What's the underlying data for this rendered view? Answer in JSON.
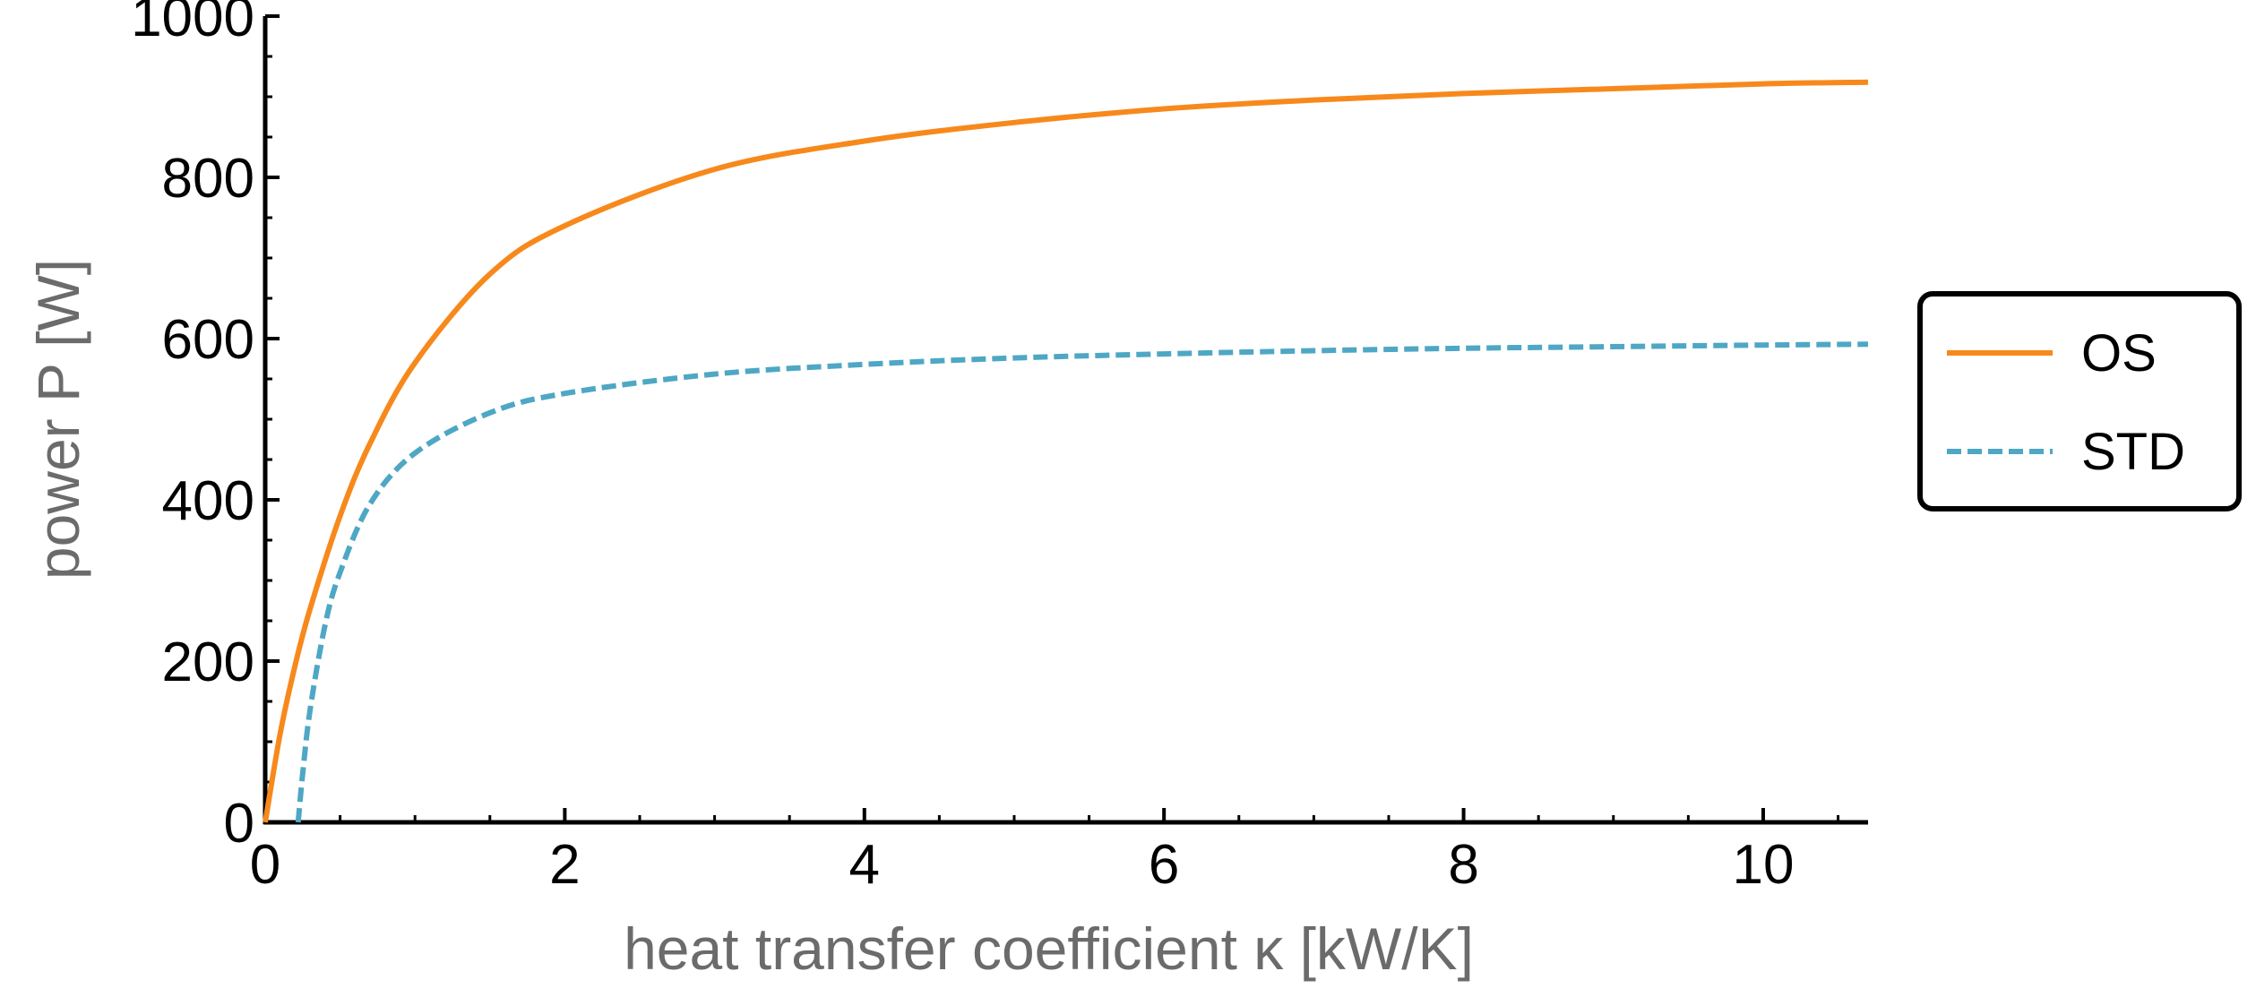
{
  "chart_data": {
    "type": "line",
    "title": "",
    "xlabel": "heat transfer coefficient κ [kW/K]",
    "ylabel": "power P [W]",
    "xlim": [
      0,
      10.7
    ],
    "ylim": [
      0,
      1000
    ],
    "x_ticks": [
      {
        "value": 0,
        "label": "0"
      },
      {
        "value": 2,
        "label": "2"
      },
      {
        "value": 4,
        "label": "4"
      },
      {
        "value": 6,
        "label": "6"
      },
      {
        "value": 8,
        "label": "8"
      },
      {
        "value": 10,
        "label": "10"
      }
    ],
    "y_ticks": [
      {
        "value": 0,
        "label": "0"
      },
      {
        "value": 200,
        "label": "200"
      },
      {
        "value": 400,
        "label": "400"
      },
      {
        "value": 600,
        "label": "600"
      },
      {
        "value": 800,
        "label": "800"
      },
      {
        "value": 1000,
        "label": "1000"
      }
    ],
    "x_minor_step": 0.5,
    "y_minor_step": 50,
    "grid": false,
    "legend_position": "right",
    "series": [
      {
        "name": "OS",
        "color": "#f7891c",
        "style": "solid",
        "x": [
          0,
          0.1,
          0.2,
          0.3,
          0.5,
          0.7,
          1.0,
          1.5,
          2,
          3,
          4,
          5,
          6,
          7,
          8,
          9,
          10,
          10.7
        ],
        "y": [
          0,
          110,
          195,
          265,
          380,
          470,
          570,
          680,
          740,
          810,
          845,
          868,
          885,
          896,
          904,
          910,
          916,
          918
        ]
      },
      {
        "name": "STD",
        "color": "#4ea7c4",
        "style": "dashed",
        "x": [
          0.22,
          0.25,
          0.3,
          0.4,
          0.5,
          0.7,
          1.0,
          1.5,
          2,
          3,
          4,
          5,
          6,
          7,
          8,
          9,
          10,
          10.7
        ],
        "y": [
          0,
          60,
          140,
          245,
          310,
          395,
          458,
          508,
          532,
          556,
          568,
          576,
          581,
          585,
          588,
          590,
          592,
          593
        ]
      }
    ]
  }
}
